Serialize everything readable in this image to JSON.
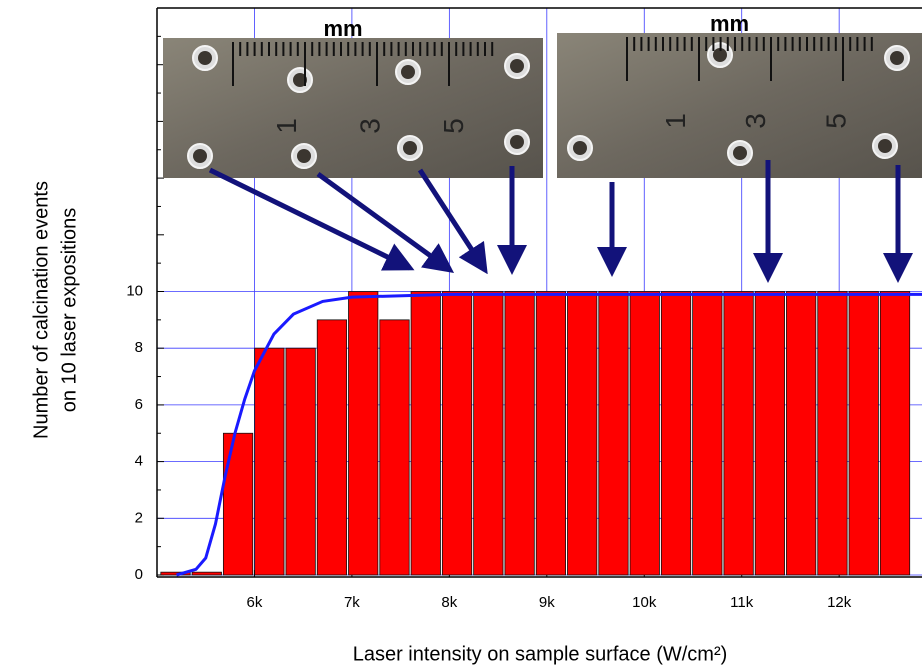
{
  "chart_data": {
    "type": "bar",
    "x_label": "Laser intensity on sample surface (W/cm²)",
    "y_label": [
      "Number of calcination events",
      "on 10 laser expositions"
    ],
    "x": [
      5190,
      5511,
      5832,
      6153,
      6474,
      6795,
      7116,
      7437,
      7758,
      8079,
      8400,
      8721,
      9042,
      9363,
      9684,
      10005,
      10326,
      10647,
      10968,
      11289,
      11610,
      11931,
      12252,
      12573
    ],
    "series": [
      {
        "type": "bar",
        "color": "#ff0000",
        "values": [
          0.1,
          0.1,
          5,
          8,
          8,
          9,
          10,
          9,
          10,
          10,
          10,
          10,
          10,
          10,
          10,
          10,
          10,
          10,
          10,
          10,
          10,
          10,
          10,
          10
        ]
      },
      {
        "type": "line",
        "color": "#1a1aff",
        "x": [
          5200,
          5400,
          5500,
          5600,
          5700,
          5800,
          5900,
          6000,
          6200,
          6400,
          6700,
          7000,
          8000,
          12850
        ],
        "values": [
          0,
          0.2,
          0.6,
          1.8,
          3.5,
          5,
          6.2,
          7.2,
          8.5,
          9.2,
          9.65,
          9.8,
          9.9,
          9.9
        ]
      }
    ],
    "xlim": [
      5000,
      12850
    ],
    "ylim": [
      0,
      20
    ],
    "xticks": [
      {
        "value": 6000,
        "label": "6k"
      },
      {
        "value": 7000,
        "label": "7k"
      },
      {
        "value": 8000,
        "label": "8k"
      },
      {
        "value": 9000,
        "label": "9k"
      },
      {
        "value": 10000,
        "label": "10k"
      },
      {
        "value": 11000,
        "label": "11k"
      },
      {
        "value": 12000,
        "label": "12k"
      }
    ],
    "yticks": [
      0,
      2,
      4,
      6,
      8,
      10
    ],
    "grid": true,
    "grid_color": "#3a3aff",
    "insets": [
      {
        "unit": "mm",
        "marks": [
          "1",
          "3",
          "5"
        ]
      },
      {
        "unit": "mm",
        "marks": [
          "1",
          "3",
          "5"
        ]
      }
    ]
  }
}
